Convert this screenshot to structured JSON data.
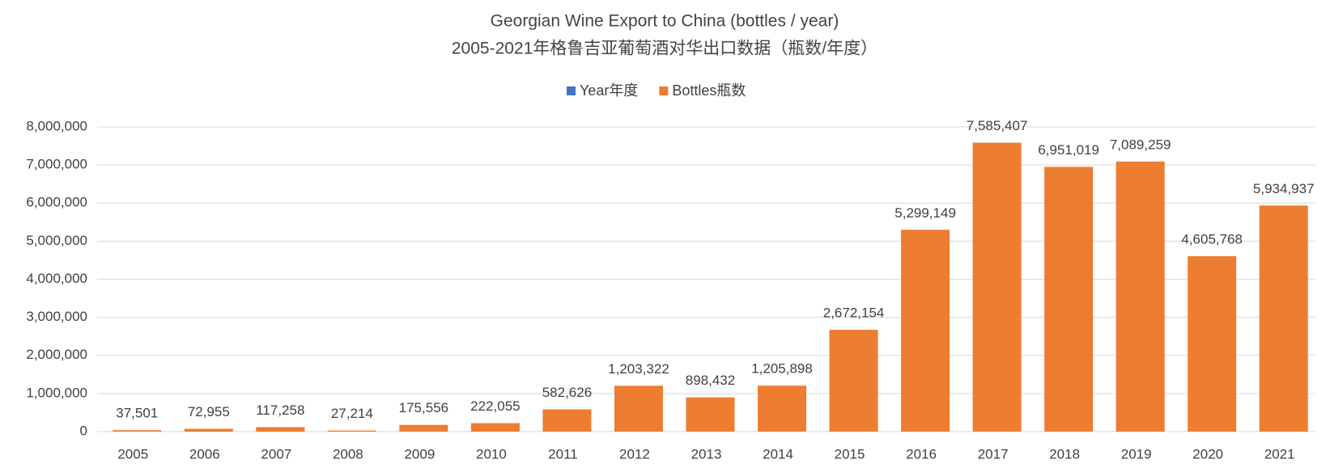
{
  "chart_data": {
    "type": "bar",
    "title": "Georgian Wine Export to China (bottles / year)",
    "subtitle": "2005-2021年格鲁吉亚葡萄酒对华出口数据（瓶数/年度）",
    "categories": [
      "2005",
      "2006",
      "2007",
      "2008",
      "2009",
      "2010",
      "2011",
      "2012",
      "2013",
      "2014",
      "2015",
      "2016",
      "2017",
      "2018",
      "2019",
      "2020",
      "2021"
    ],
    "series": [
      {
        "name": "Year年度",
        "color": "#4472c4",
        "values": [
          2005,
          2006,
          2007,
          2008,
          2009,
          2010,
          2011,
          2012,
          2013,
          2014,
          2015,
          2016,
          2017,
          2018,
          2019,
          2020,
          2021
        ]
      },
      {
        "name": "Bottles瓶数",
        "color": "#ed7d31",
        "values": [
          37501,
          72955,
          117258,
          27214,
          175556,
          222055,
          582626,
          1203322,
          898432,
          1205898,
          2672154,
          5299149,
          7585407,
          6951019,
          7089259,
          4605768,
          5934937
        ],
        "value_labels": [
          "37,501",
          "72,955",
          "117,258",
          "27,214",
          "175,556",
          "222,055",
          "582,626",
          "1,203,322",
          "898,432",
          "1,205,898",
          "2,672,154",
          "5,299,149",
          "7,585,407",
          "6,951,019",
          "7,089,259",
          "4,605,768",
          "5,934,937"
        ]
      }
    ],
    "ylim": [
      0,
      8000000
    ],
    "yticks": [
      0,
      {
        "value": 1000000,
        "label": "1,000,000"
      },
      {
        "value": 2000000,
        "label": "2,000,000"
      },
      {
        "value": 3000000,
        "label": "3,000,000"
      },
      {
        "value": 4000000,
        "label": "4,000,000"
      },
      {
        "value": 5000000,
        "label": "5,000,000"
      },
      {
        "value": 6000000,
        "label": "6,000,000"
      },
      {
        "value": 7000000,
        "label": "7,000,000"
      },
      {
        "value": 8000000,
        "label": "8,000,000"
      }
    ],
    "grid": true,
    "legend": "top"
  }
}
